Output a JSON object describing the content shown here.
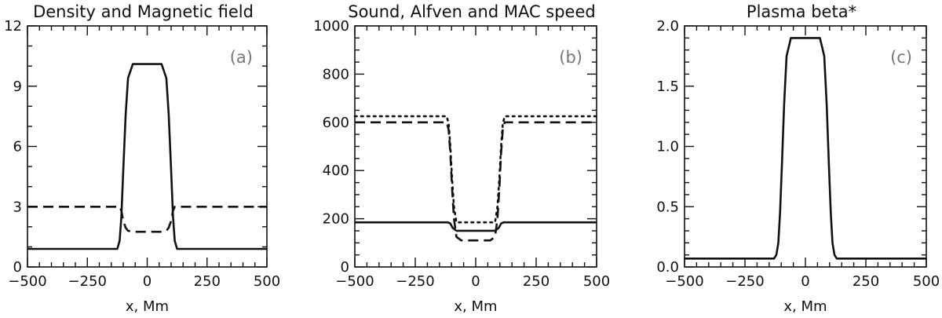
{
  "chart_data": [
    {
      "type": "line",
      "panel_label": "(a)",
      "title": "Density and Magnetic field",
      "xlabel": "x, Mm",
      "ylabel": "",
      "xlim": [
        -500,
        500
      ],
      "ylim": [
        0,
        12
      ],
      "xticks": [
        -500,
        -250,
        0,
        250,
        500
      ],
      "xtick_labels": [
        "−500",
        "−250",
        "0",
        "250",
        "500"
      ],
      "yticks": [
        0,
        3,
        6,
        9,
        12
      ],
      "ytick_labels": [
        "0",
        "3",
        "6",
        "9",
        "12"
      ],
      "grid": false,
      "series": [
        {
          "style": "solid",
          "x": [
            -500,
            -125,
            -115,
            -108,
            -100,
            -90,
            -80,
            -60,
            60,
            80,
            90,
            100,
            108,
            115,
            125,
            500
          ],
          "y": [
            0.9,
            0.9,
            1.3,
            2.5,
            4.8,
            7.6,
            9.4,
            10.1,
            10.1,
            9.4,
            7.6,
            4.8,
            2.5,
            1.3,
            0.9,
            0.9
          ]
        },
        {
          "style": "dashed",
          "x": [
            -500,
            -115,
            -108,
            -100,
            -90,
            -80,
            -60,
            60,
            80,
            90,
            100,
            108,
            115,
            500
          ],
          "y": [
            3.0,
            3.0,
            2.8,
            2.3,
            1.95,
            1.8,
            1.75,
            1.75,
            1.8,
            1.95,
            2.3,
            2.8,
            3.0,
            3.0
          ]
        }
      ]
    },
    {
      "type": "line",
      "panel_label": "(b)",
      "title": "Sound, Alfven and MAC speed",
      "xlabel": "x, Mm",
      "ylabel": "",
      "xlim": [
        -500,
        500
      ],
      "ylim": [
        0,
        1000
      ],
      "xticks": [
        -500,
        -250,
        0,
        250,
        500
      ],
      "xtick_labels": [
        "−500",
        "−250",
        "0",
        "250",
        "500"
      ],
      "yticks": [
        0,
        200,
        400,
        600,
        800,
        1000
      ],
      "ytick_labels": [
        "0",
        "200",
        "400",
        "600",
        "800",
        "1000"
      ],
      "grid": false,
      "series": [
        {
          "style": "solid",
          "x": [
            -500,
            -115,
            -105,
            -95,
            -80,
            80,
            95,
            105,
            115,
            500
          ],
          "y": [
            185,
            185,
            180,
            162,
            150,
            150,
            162,
            180,
            185,
            185
          ]
        },
        {
          "style": "dotted",
          "x": [
            -500,
            -120,
            -112,
            -105,
            -98,
            -90,
            -80,
            80,
            90,
            98,
            105,
            112,
            120,
            500
          ],
          "y": [
            625,
            625,
            595,
            500,
            370,
            250,
            185,
            185,
            250,
            370,
            500,
            595,
            625,
            625
          ]
        },
        {
          "style": "dashed",
          "x": [
            -500,
            -120,
            -112,
            -105,
            -98,
            -90,
            -80,
            -60,
            60,
            80,
            90,
            98,
            105,
            112,
            120,
            500
          ],
          "y": [
            600,
            600,
            570,
            470,
            330,
            200,
            125,
            110,
            110,
            125,
            200,
            330,
            470,
            570,
            600,
            600
          ]
        }
      ]
    },
    {
      "type": "line",
      "panel_label": "(c)",
      "title": "Plasma beta*",
      "xlabel": "x, Mm",
      "ylabel": "",
      "xlim": [
        -500,
        500
      ],
      "ylim": [
        0,
        2.0
      ],
      "xticks": [
        -500,
        -250,
        0,
        250,
        500
      ],
      "xtick_labels": [
        "−500",
        "−250",
        "0",
        "250",
        "500"
      ],
      "yticks": [
        0,
        0.5,
        1.0,
        1.5,
        2.0
      ],
      "ytick_labels": [
        "0.0",
        "0.5",
        "1.0",
        "1.5",
        "2.0"
      ],
      "grid": false,
      "series": [
        {
          "style": "solid",
          "x": [
            -500,
            -130,
            -120,
            -112,
            -105,
            -97,
            -88,
            -78,
            -60,
            60,
            78,
            88,
            97,
            105,
            112,
            120,
            130,
            500
          ],
          "y": [
            0.07,
            0.07,
            0.1,
            0.2,
            0.45,
            0.85,
            1.35,
            1.75,
            1.9,
            1.9,
            1.75,
            1.35,
            0.85,
            0.45,
            0.2,
            0.1,
            0.07,
            0.07
          ]
        }
      ]
    }
  ]
}
